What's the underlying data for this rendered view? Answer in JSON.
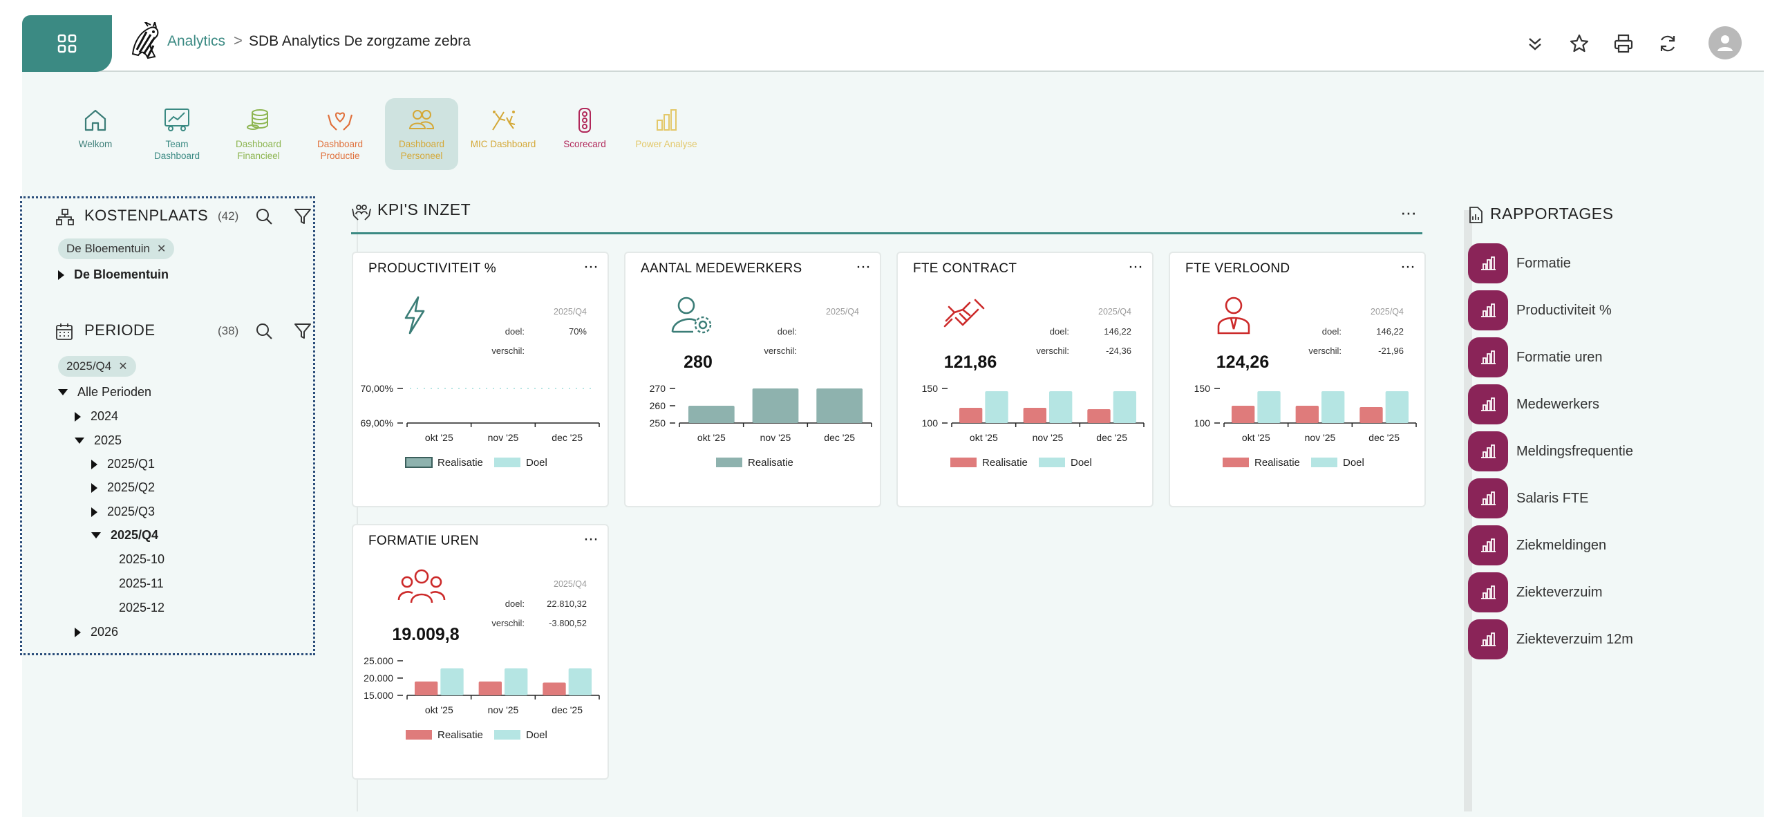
{
  "header": {
    "app_name": "Analytics",
    "separator": ">",
    "page_title": "SDB Analytics De zorgzame zebra"
  },
  "nav": [
    {
      "label": "Welkom",
      "color": "#3b7d77",
      "icon": "home-icon"
    },
    {
      "label": "Team Dashboard",
      "color": "#3b8a83",
      "icon": "team-chart-icon"
    },
    {
      "label": "Dashboard Financieel",
      "color": "#8db550",
      "icon": "coins-icon"
    },
    {
      "label": "Dashboard Productie",
      "color": "#e0703b",
      "icon": "care-hands-icon"
    },
    {
      "label": "Dashboard Personeel",
      "color": "#d4a837",
      "icon": "people-icon"
    },
    {
      "label": "MIC Dashboard",
      "color": "#d4a837",
      "icon": "fireworks-icon"
    },
    {
      "label": "Scorecard",
      "color": "#b1285a",
      "icon": "traffic-light-icon"
    },
    {
      "label": "Power Analyse",
      "color": "#e3c86a",
      "icon": "bar-chart-icon"
    }
  ],
  "left_panel": {
    "kostenplaats": {
      "title": "KOSTENPLAATS",
      "count": "(42)",
      "chip": "De Bloementuin",
      "tree": [
        "De Bloementuin"
      ]
    },
    "periode": {
      "title": "PERIODE",
      "count": "(38)",
      "chip": "2025/Q4",
      "tree": [
        {
          "label": "Alle Perioden"
        },
        {
          "label": "2024"
        },
        {
          "label": "2025"
        },
        {
          "label": "2025/Q1"
        },
        {
          "label": "2025/Q2"
        },
        {
          "label": "2025/Q3"
        },
        {
          "label": "2025/Q4"
        },
        {
          "label": "2025-10"
        },
        {
          "label": "2025-11"
        },
        {
          "label": "2025-12"
        },
        {
          "label": "2026"
        }
      ]
    }
  },
  "kpi": {
    "title": "KPI'S INZET",
    "more": "···",
    "cards": [
      {
        "title": "PRODUCTIVITEIT %",
        "period": "2025/Q4",
        "doel_label": "doel:",
        "doel_value": "70%",
        "verschil_label": "verschil:",
        "verschil_value": "",
        "value": "",
        "legend": [
          "Realisatie",
          "Doel"
        ]
      },
      {
        "title": "AANTAL MEDEWERKERS",
        "period": "2025/Q4",
        "doel_label": "doel:",
        "doel_value": "",
        "verschil_label": "verschil:",
        "verschil_value": "",
        "value": "280",
        "legend": [
          "Realisatie"
        ]
      },
      {
        "title": "FTE CONTRACT",
        "period": "2025/Q4",
        "doel_label": "doel:",
        "doel_value": "146,22",
        "verschil_label": "verschil:",
        "verschil_value": "-24,36",
        "value": "121,86",
        "legend": [
          "Realisatie",
          "Doel"
        ]
      },
      {
        "title": "FTE VERLOOND",
        "period": "2025/Q4",
        "doel_label": "doel:",
        "doel_value": "146,22",
        "verschil_label": "verschil:",
        "verschil_value": "-21,96",
        "value": "124,26",
        "legend": [
          "Realisatie",
          "Doel"
        ]
      },
      {
        "title": "FORMATIE UREN",
        "period": "2025/Q4",
        "doel_label": "doel:",
        "doel_value": "22.810,32",
        "verschil_label": "verschil:",
        "verschil_value": "-3.800,52",
        "value": "19.009,8",
        "legend": [
          "Realisatie",
          "Doel"
        ]
      }
    ]
  },
  "chart_data": [
    {
      "type": "line",
      "title": "PRODUCTIVITEIT %",
      "categories": [
        "okt '25",
        "nov '25",
        "dec '25"
      ],
      "yticks": [
        "69,00%",
        "70,00%"
      ],
      "ylim": [
        69,
        70
      ],
      "series": [
        {
          "name": "Realisatie",
          "values": [
            null,
            null,
            null
          ],
          "color": "#8eb2ae"
        },
        {
          "name": "Doel",
          "values": [
            70,
            70,
            70
          ],
          "color": "#b5e5e3"
        }
      ]
    },
    {
      "type": "bar",
      "title": "AANTAL MEDEWERKERS",
      "categories": [
        "okt '25",
        "nov '25",
        "dec '25"
      ],
      "yticks": [
        "250",
        "260",
        "270"
      ],
      "ylim": [
        250,
        270
      ],
      "series": [
        {
          "name": "Realisatie",
          "values": [
            260,
            270,
            270
          ],
          "color": "#8eb2ae"
        }
      ]
    },
    {
      "type": "bar",
      "title": "FTE CONTRACT",
      "categories": [
        "okt '25",
        "nov '25",
        "dec '25"
      ],
      "yticks": [
        "100",
        "150"
      ],
      "ylim": [
        100,
        150
      ],
      "series": [
        {
          "name": "Realisatie",
          "values": [
            122,
            122,
            120
          ],
          "color": "#df7b7b"
        },
        {
          "name": "Doel",
          "values": [
            146,
            146,
            146
          ],
          "color": "#b5e5e3"
        }
      ]
    },
    {
      "type": "bar",
      "title": "FTE VERLOOND",
      "categories": [
        "okt '25",
        "nov '25",
        "dec '25"
      ],
      "yticks": [
        "100",
        "150"
      ],
      "ylim": [
        100,
        150
      ],
      "series": [
        {
          "name": "Realisatie",
          "values": [
            125,
            125,
            123
          ],
          "color": "#df7b7b"
        },
        {
          "name": "Doel",
          "values": [
            146,
            146,
            146
          ],
          "color": "#b5e5e3"
        }
      ]
    },
    {
      "type": "bar",
      "title": "FORMATIE UREN",
      "categories": [
        "okt '25",
        "nov '25",
        "dec '25"
      ],
      "yticks": [
        "15.000",
        "20.000",
        "25.000"
      ],
      "ylim": [
        15000,
        25000
      ],
      "series": [
        {
          "name": "Realisatie",
          "values": [
            19000,
            19000,
            18700
          ],
          "color": "#df7b7b"
        },
        {
          "name": "Doel",
          "values": [
            22800,
            22800,
            22800
          ],
          "color": "#b5e5e3"
        }
      ]
    }
  ],
  "right_panel": {
    "title": "RAPPORTAGES",
    "items": [
      "Formatie",
      "Productiviteit %",
      "Formatie uren",
      "Medewerkers",
      "Meldingsfrequentie",
      "Salaris FTE",
      "Ziekmeldingen",
      "Ziekteverzuim",
      "Ziekteverzuim 12m"
    ]
  }
}
